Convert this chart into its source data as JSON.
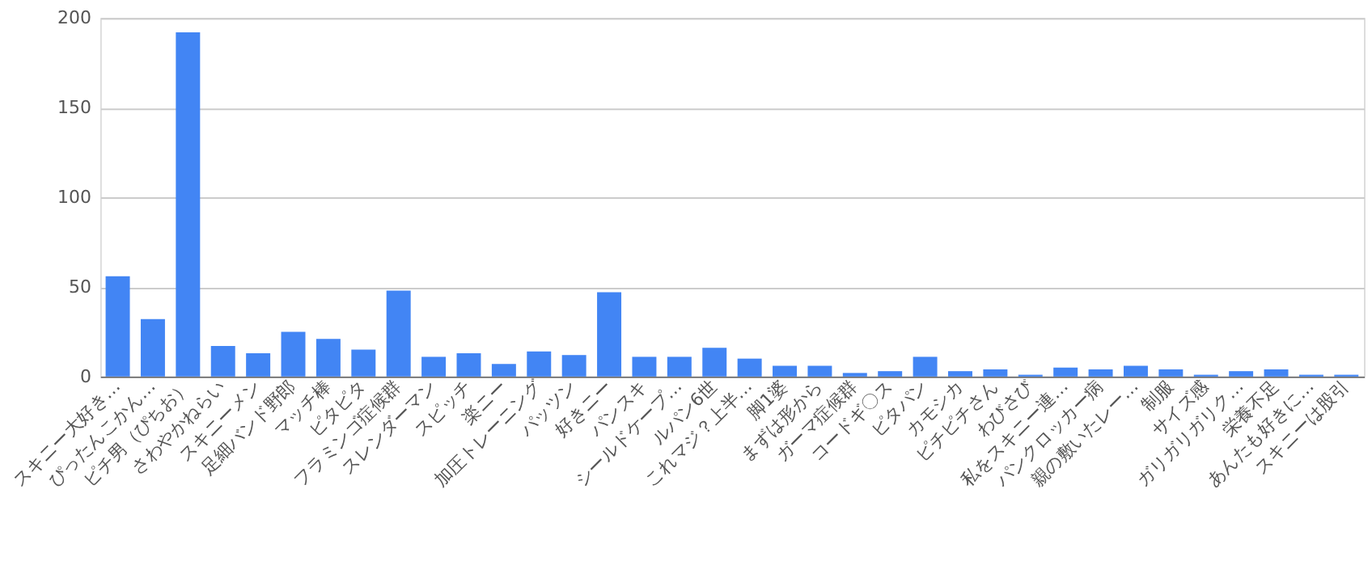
{
  "chart_data": {
    "type": "bar",
    "categories": [
      "スキニー大好き…",
      "ぴったんこかん…",
      "ピチ男（ぴちお）",
      "さわやかねらい",
      "スキニーメン",
      "足細バンド野郎",
      "マッチ棒",
      "ピタピタ",
      "フラミンゴ症候群",
      "スレンダーマン",
      "スピッチ",
      "楽ニー",
      "加圧トレーニング",
      "パッツン",
      "好きニー",
      "パンスキ",
      "シールドケープ…",
      "ルパン6世",
      "これマジ？上半…",
      "脚1婆",
      "まずは形から",
      "ガーマ症候群",
      "コードギ〇ス",
      "ピタパン",
      "カモシカ",
      "ピチピチさん",
      "わびさび",
      "私をスキニー連…",
      "パンクロッカー病",
      "親の敷いたレー…",
      "制服",
      "サイズ感",
      "ガリガリガリク…",
      "栄養不足",
      "あんたも好きに…",
      "スキニーは股引"
    ],
    "values": [
      56,
      32,
      192,
      17,
      13,
      25,
      21,
      15,
      48,
      11,
      13,
      7,
      14,
      12,
      47,
      11,
      11,
      16,
      10,
      6,
      6,
      2,
      3,
      11,
      3,
      4,
      1,
      5,
      4,
      6,
      4,
      1,
      3,
      4,
      1,
      1
    ],
    "color": "#4285f4",
    "ylim": [
      0,
      200
    ],
    "yticks": [
      0,
      50,
      100,
      150,
      200
    ],
    "grid": "y"
  }
}
